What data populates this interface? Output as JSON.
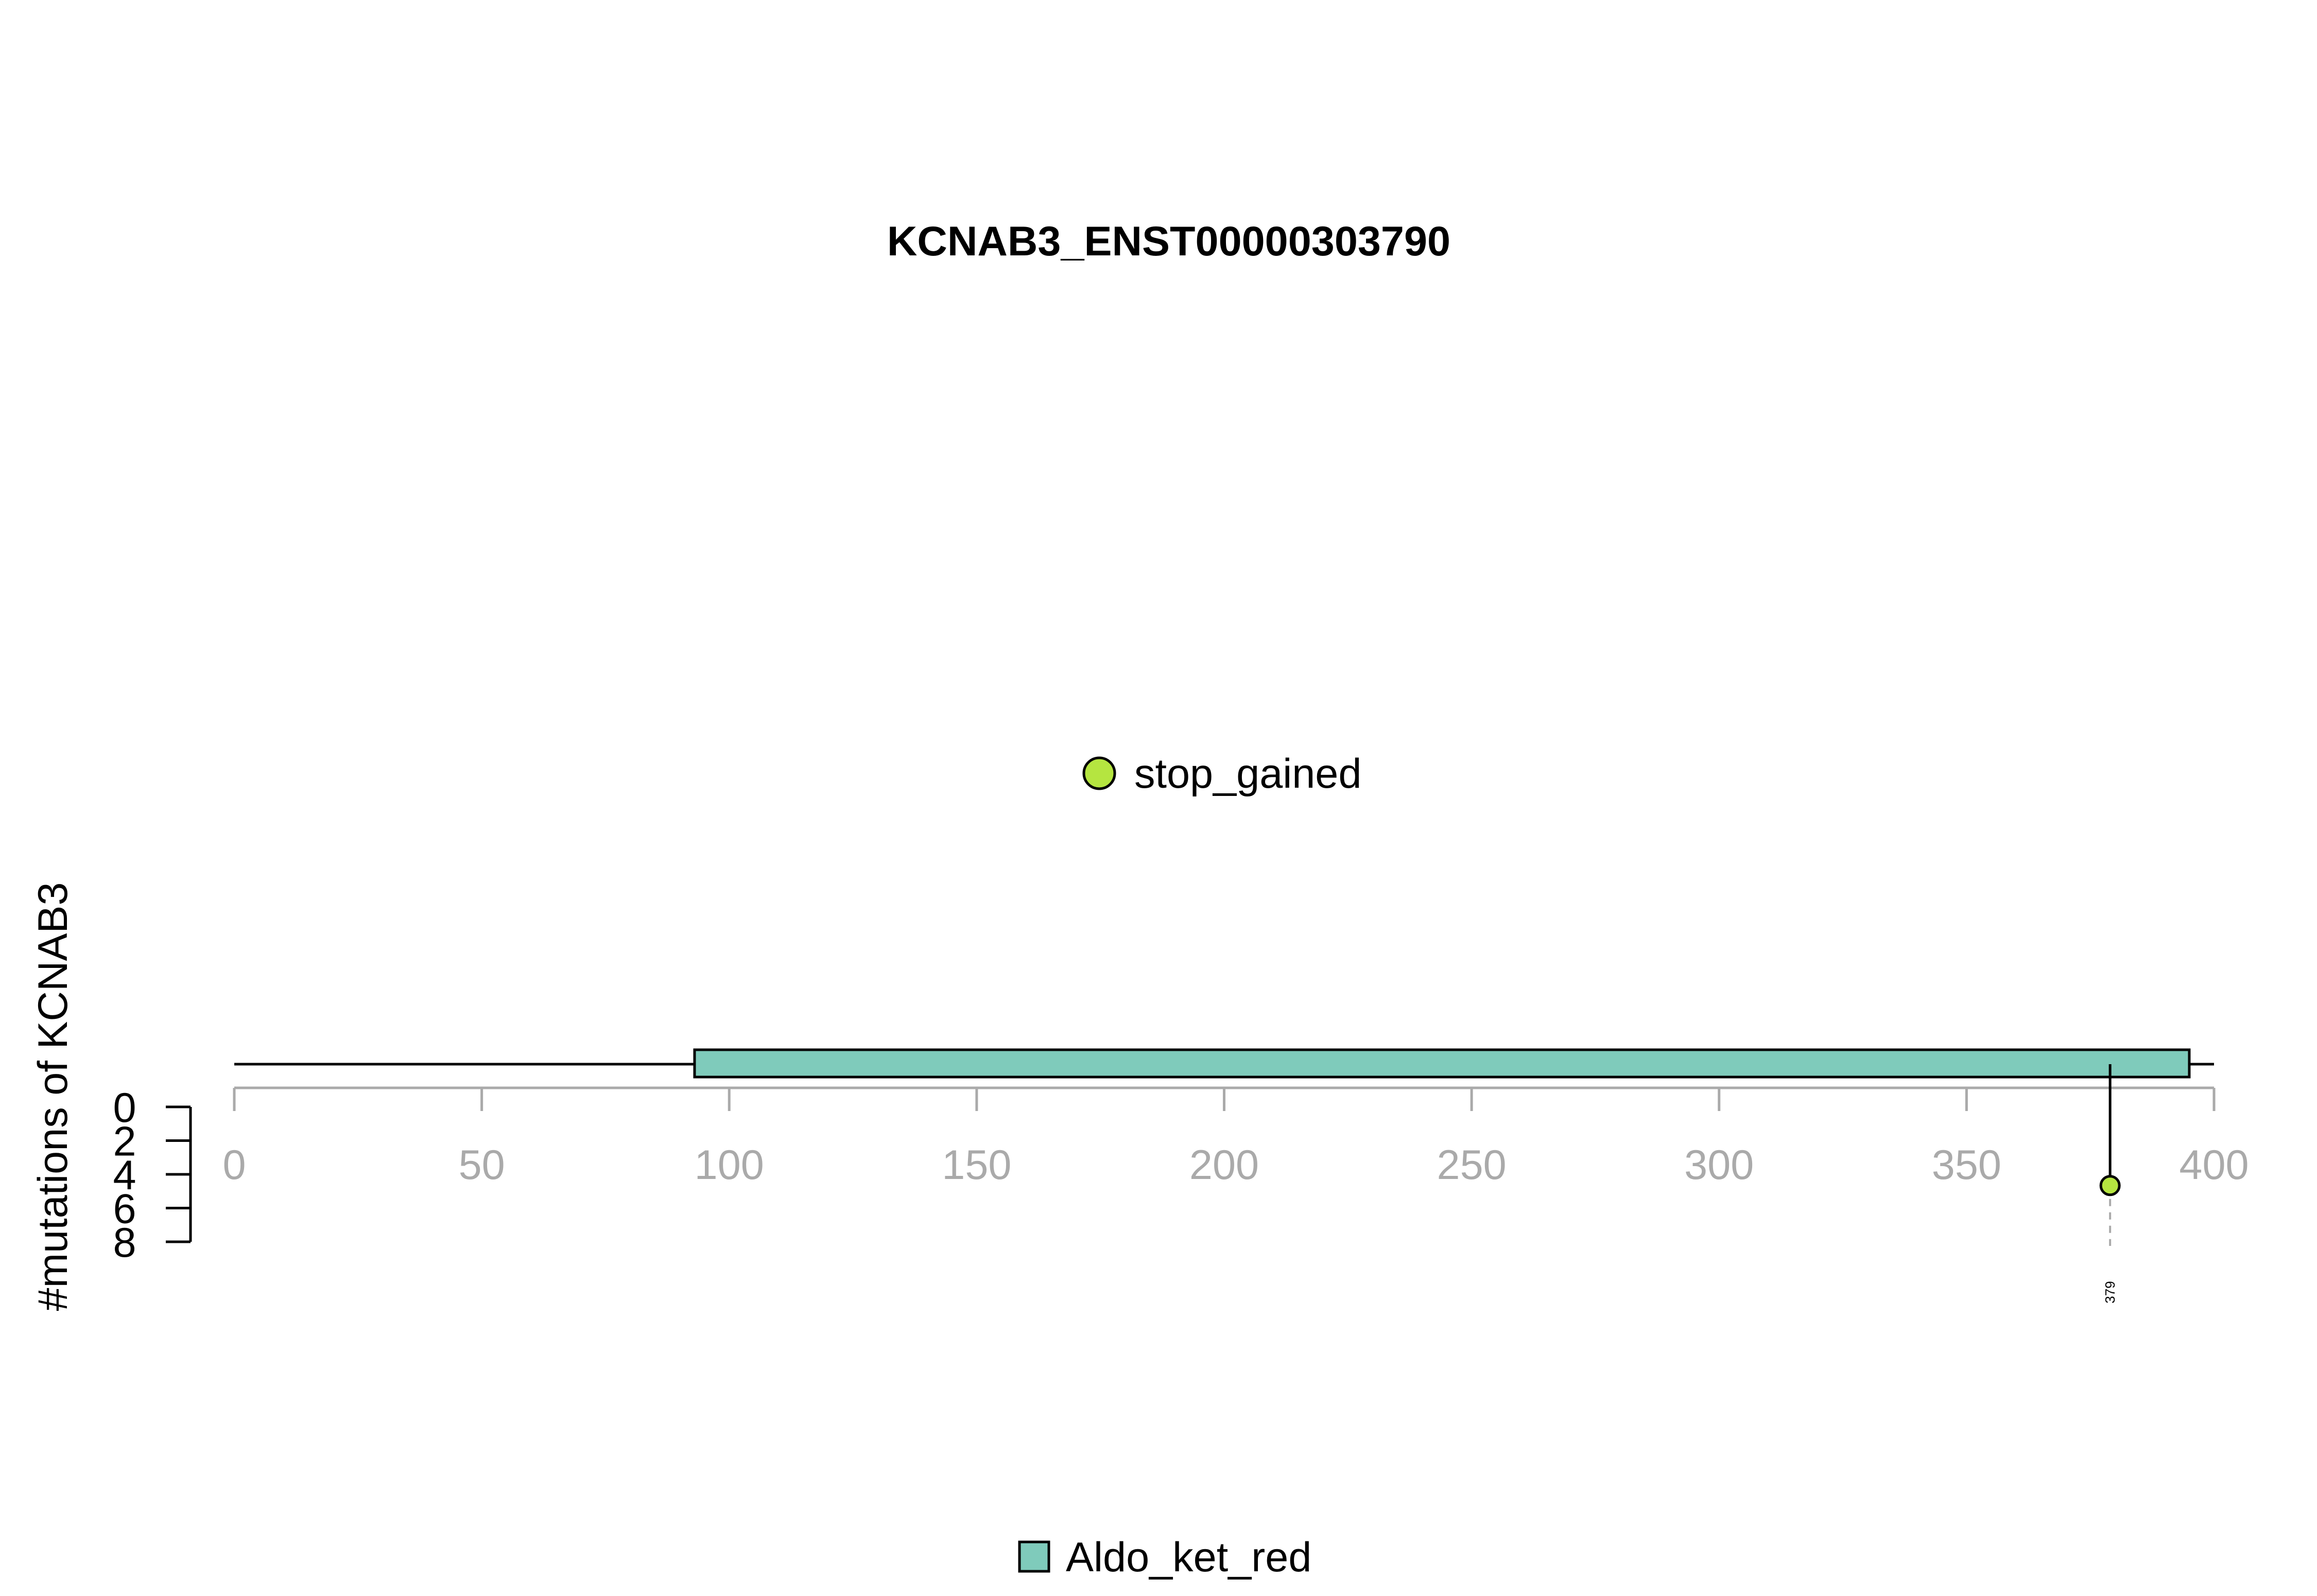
{
  "chart_data": {
    "type": "lollipop",
    "title": "KCNAB3_ENST00000303790",
    "ylabel": "#mutations of KCNAB3",
    "protein_length": 400,
    "xlim": [
      0,
      400
    ],
    "x_ticks": [
      0,
      50,
      100,
      150,
      200,
      250,
      300,
      350,
      400
    ],
    "ylim": [
      0,
      8
    ],
    "y_ticks": [
      0,
      2,
      4,
      6,
      8
    ],
    "domains": [
      {
        "name": "Aldo_ket_red",
        "start": 93,
        "end": 395,
        "color": "#7fcbbb"
      }
    ],
    "mutations": [
      {
        "position": 379,
        "count": 1,
        "type": "stop_gained",
        "label": "379"
      }
    ],
    "mutation_legend": [
      {
        "label": "stop_gained",
        "color": "#b5e540"
      }
    ],
    "domain_legend": [
      {
        "label": "Aldo_ket_red",
        "color": "#7fcbbb"
      }
    ]
  }
}
